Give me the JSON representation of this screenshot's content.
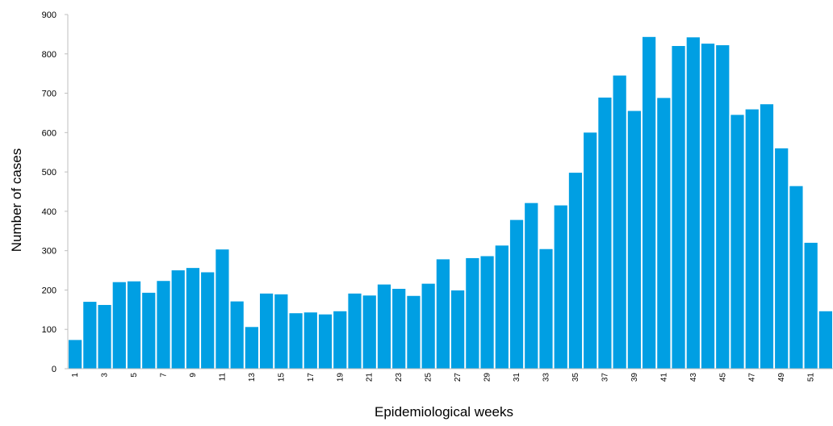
{
  "chart_data": {
    "type": "bar",
    "title": "",
    "xlabel": "Epidemiological weeks",
    "ylabel": "Number of cases",
    "ylim": [
      0,
      900
    ],
    "yticks": [
      0,
      100,
      200,
      300,
      400,
      500,
      600,
      700,
      800,
      900
    ],
    "grid": false,
    "bar_color": "#009fe3",
    "categories": [
      "1",
      "2",
      "3",
      "4",
      "5",
      "6",
      "7",
      "8",
      "9",
      "10",
      "11",
      "12",
      "13",
      "14",
      "15",
      "16",
      "17",
      "18",
      "19",
      "20",
      "21",
      "22",
      "23",
      "24",
      "25",
      "26",
      "27",
      "28",
      "29",
      "30",
      "31",
      "32",
      "33",
      "34",
      "35",
      "36",
      "37",
      "38",
      "39",
      "40",
      "41",
      "42",
      "43",
      "44",
      "45",
      "46",
      "47",
      "48",
      "49",
      "50",
      "51",
      "52"
    ],
    "tick_labels": [
      "1",
      "3",
      "5",
      "7",
      "9",
      "11",
      "13",
      "15",
      "17",
      "19",
      "21",
      "23",
      "25",
      "27",
      "29",
      "31",
      "33",
      "35",
      "37",
      "39",
      "41",
      "43",
      "45",
      "47",
      "49",
      "51"
    ],
    "values": [
      73,
      170,
      162,
      220,
      222,
      193,
      223,
      250,
      256,
      245,
      303,
      171,
      106,
      191,
      189,
      141,
      143,
      138,
      146,
      191,
      186,
      214,
      203,
      185,
      216,
      278,
      199,
      281,
      286,
      313,
      378,
      421,
      304,
      415,
      498,
      600,
      689,
      745,
      655,
      843,
      688,
      820,
      842,
      826,
      822,
      645,
      659,
      672,
      560,
      464,
      320,
      146
    ]
  }
}
